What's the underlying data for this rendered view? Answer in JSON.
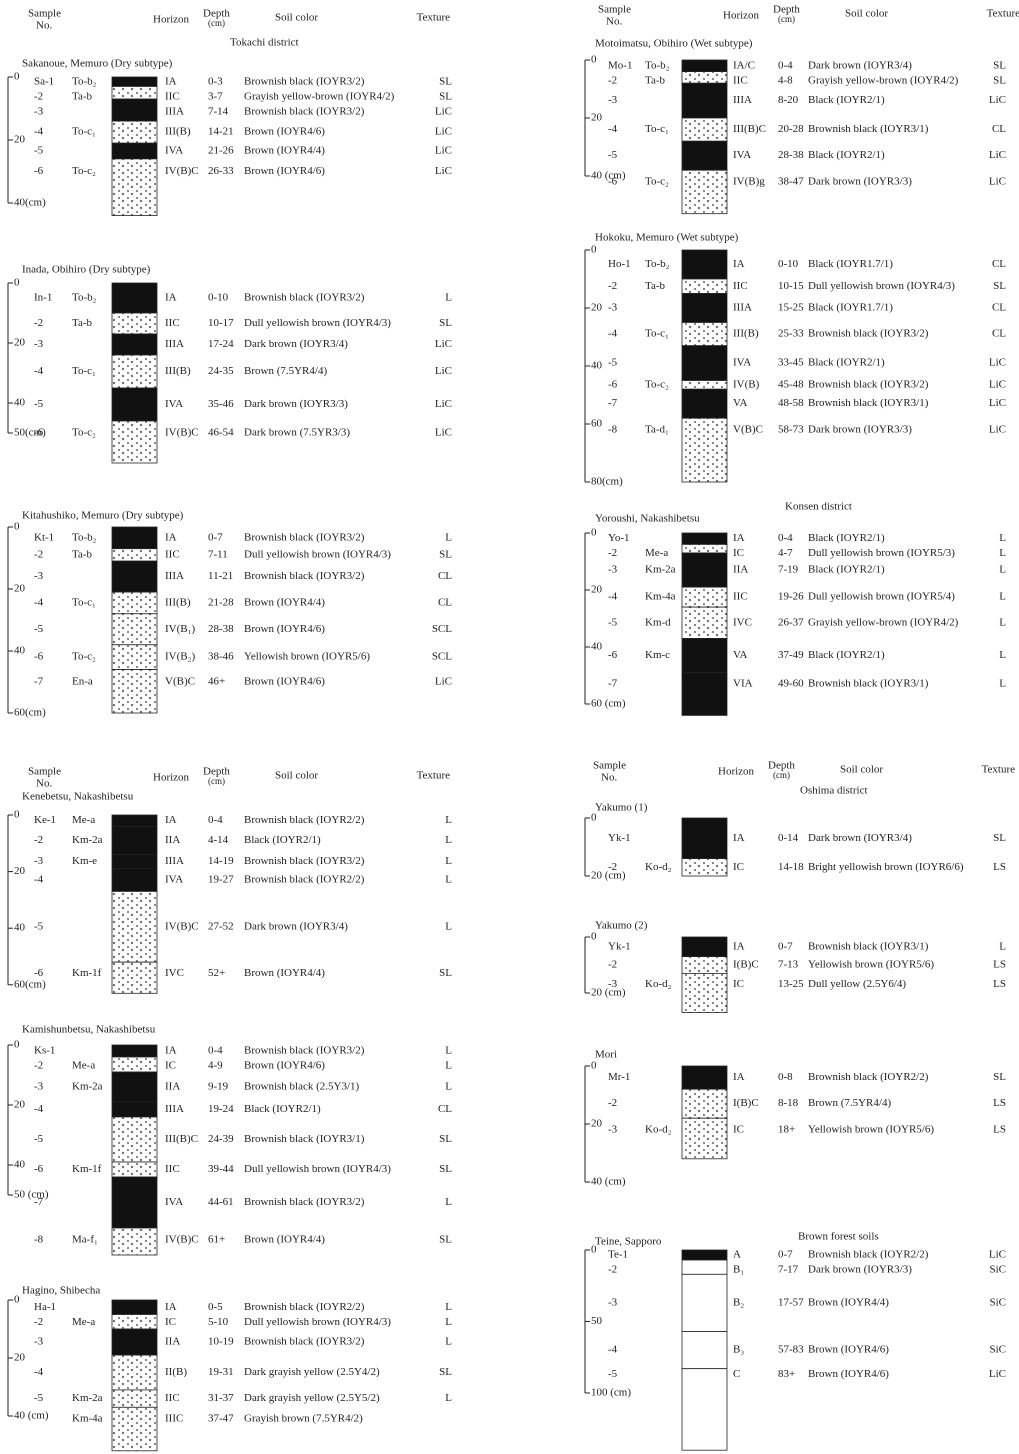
{
  "headers": [
    {
      "sample_1": "Sample",
      "sample_2": "No.",
      "horizon": "Horizon",
      "depth_1": "Depth",
      "depth_2": "(cm)",
      "color": "Soil color",
      "texture": "Texture"
    },
    {
      "sample_1": "Sample",
      "sample_2": "No.",
      "horizon": "Horizon",
      "depth_1": "Depth",
      "depth_2": "(cm)",
      "color": "Soil color",
      "texture": "Texture"
    },
    {
      "sample_1": "Sample",
      "sample_2": "No.",
      "horizon": "Horizon",
      "depth_1": "Depth",
      "depth_2": "(cm)",
      "color": "Soil color",
      "texture": "Texture"
    },
    {
      "sample_1": "Sample",
      "sample_2": "No.",
      "horizon": "Horizon",
      "depth_1": "Depth",
      "depth_2": "(cm)",
      "color": "Soil color",
      "texture": "Texture"
    }
  ],
  "districts": [
    "Tokachi district",
    "Konsen district",
    "Oshima district",
    "Brown forest soils"
  ],
  "profiles": [
    {
      "title": "Sakanoue, Memuro (Dry subtype)",
      "ticks": [
        "0",
        "20",
        "40(cm)"
      ],
      "rows": [
        {
          "no": "Sa-1",
          "tephra": "To-b₂",
          "horizon": "IA",
          "depth": "0-3",
          "color": "Brownish black (IOYR3/2)",
          "texture": "SL"
        },
        {
          "no": "-2",
          "tephra": "Ta-b",
          "horizon": "IIC",
          "depth": "3-7",
          "color": "Grayish yellow-brown (IOYR4/2)",
          "texture": "SL"
        },
        {
          "no": "-3",
          "horizon": "IIIA",
          "depth": "7-14",
          "color": "Brownish black (IOYR3/2)",
          "texture": "LiC"
        },
        {
          "no": "-4",
          "tephra": "To-c₁",
          "horizon": "III(B)",
          "depth": "14-21",
          "color": "Brown (IOYR4/6)",
          "texture": "LiC"
        },
        {
          "no": "-5",
          "horizon": "IVA",
          "depth": "21-26",
          "color": "Brown (IOYR4/4)",
          "texture": "LiC"
        },
        {
          "no": "-6",
          "tephra": "To-c₂",
          "horizon": "IV(B)C",
          "depth": "26-33",
          "color": "Brown (IOYR4/6)",
          "texture": "LiC"
        }
      ]
    },
    {
      "title": "Inada, Obihiro (Dry subtype)",
      "ticks": [
        "0",
        "20",
        "40",
        "50(cm)"
      ],
      "rows": [
        {
          "no": "In-1",
          "tephra": "To-b₂",
          "horizon": "IA",
          "depth": "0-10",
          "color": "Brownish black (IOYR3/2)",
          "texture": "L"
        },
        {
          "no": "-2",
          "tephra": "Ta-b",
          "horizon": "IIC",
          "depth": "10-17",
          "color": "Dull yellowish brown (IOYR4/3)",
          "texture": "SL"
        },
        {
          "no": "-3",
          "horizon": "IIIA",
          "depth": "17-24",
          "color": "Dark brown (IOYR3/4)",
          "texture": "LiC"
        },
        {
          "no": "-4",
          "tephra": "To-c₁",
          "horizon": "III(B)",
          "depth": "24-35",
          "color": "Brown (7.5YR4/4)",
          "texture": "LiC"
        },
        {
          "no": "-5",
          "horizon": "IVA",
          "depth": "35-46",
          "color": "Dark brown (IOYR3/3)",
          "texture": "LiC"
        },
        {
          "no": "-6",
          "tephra": "To-c₂",
          "horizon": "IV(B)C",
          "depth": "46-54",
          "color": "Dark brown (7.5YR3/3)",
          "texture": "LiC"
        }
      ]
    },
    {
      "title": "Kitahushiko, Memuro (Dry subtype)",
      "ticks": [
        "0",
        "20",
        "40",
        "60(cm)"
      ],
      "rows": [
        {
          "no": "Kt-1",
          "tephra": "To-b₂",
          "horizon": "IA",
          "depth": "0-7",
          "color": "Brownish black (IOYR3/2)",
          "texture": "L"
        },
        {
          "no": "-2",
          "tephra": "Ta-b",
          "horizon": "IIC",
          "depth": "7-11",
          "color": "Dull yellowish brown (IOYR4/3)",
          "texture": "SL"
        },
        {
          "no": "-3",
          "horizon": "IIIA",
          "depth": "11-21",
          "color": "Brownish black (IOYR3/2)",
          "texture": "CL"
        },
        {
          "no": "-4",
          "tephra": "To-c₁",
          "horizon": "III(B)",
          "depth": "21-28",
          "color": "Brown (IOYR4/4)",
          "texture": "CL"
        },
        {
          "no": "-5",
          "horizon": "IV(B₁)",
          "depth": "28-38",
          "color": "Brown (IOYR4/6)",
          "texture": "SCL"
        },
        {
          "no": "-6",
          "tephra": "To-c₂",
          "horizon": "IV(B₂)",
          "depth": "38-46",
          "color": "Yellowish brown (IOYR5/6)",
          "texture": "SCL"
        },
        {
          "no": "-7",
          "tephra": "En-a",
          "horizon": "V(B)C",
          "depth": "46+",
          "color": "Brown (IOYR4/6)",
          "texture": "LiC"
        }
      ]
    },
    {
      "title": "Kenebetsu, Nakashibetsu",
      "ticks": [
        "0",
        "20",
        "40",
        "60(cm)"
      ],
      "rows": [
        {
          "no": "Ke-1",
          "tephra": "Me-a",
          "horizon": "IA",
          "depth": "0-4",
          "color": "Brownish black (IOYR2/2)",
          "texture": "L"
        },
        {
          "no": "-2",
          "tephra": "Km-2a",
          "horizon": "IIA",
          "depth": "4-14",
          "color": "Black (IOYR2/1)",
          "texture": "L"
        },
        {
          "no": "-3",
          "tephra": "Km-e",
          "horizon": "IIIA",
          "depth": "14-19",
          "color": "Brownish black (IOYR3/2)",
          "texture": "L"
        },
        {
          "no": "-4",
          "horizon": "IVA",
          "depth": "19-27",
          "color": "Brownish black (IOYR2/2)",
          "texture": "L"
        },
        {
          "no": "-5",
          "horizon": "IV(B)C",
          "depth": "27-52",
          "color": "Dark brown (IOYR3/4)",
          "texture": "L"
        },
        {
          "no": "-6",
          "tephra": "Km-1f",
          "horizon": "IVC",
          "depth": "52+",
          "color": "Brown (IOYR4/4)",
          "texture": "SL"
        }
      ]
    },
    {
      "title": "Kamishunbetsu, Nakashibetsu",
      "ticks": [
        "0",
        "20",
        "40",
        "50 (cm)"
      ],
      "rows": [
        {
          "no": "Ks-1",
          "horizon": "IA",
          "depth": "0-4",
          "color": "Brownish black (IOYR3/2)",
          "texture": "L"
        },
        {
          "no": "-2",
          "tephra": "Me-a",
          "horizon": "IC",
          "depth": "4-9",
          "color": "Brown (IOYR4/6)",
          "texture": "L"
        },
        {
          "no": "-3",
          "tephra": "Km-2a",
          "horizon": "IIA",
          "depth": "9-19",
          "color": "Brownish black (2.5Y3/1)",
          "texture": "L"
        },
        {
          "no": "-4",
          "horizon": "IIIA",
          "depth": "19-24",
          "color": "Black (IOYR2/1)",
          "texture": "CL"
        },
        {
          "no": "-5",
          "horizon": "III(B)C",
          "depth": "24-39",
          "color": "Brownish black (IOYR3/1)",
          "texture": "SL"
        },
        {
          "no": "-6",
          "tephra": "Km-1f",
          "horizon": "IIC",
          "depth": "39-44",
          "color": "Dull yellowish brown (IOYR4/3)",
          "texture": "SL"
        },
        {
          "no": "-7",
          "horizon": "IVA",
          "depth": "44-61",
          "color": "Brownish black (IOYR3/2)",
          "texture": "L"
        },
        {
          "no": "-8",
          "tephra": "Ma-f₁",
          "horizon": "IV(B)C",
          "depth": "61+",
          "color": "Brown (IOYR4/4)",
          "texture": "SL"
        }
      ]
    },
    {
      "title": "Hagino, Shibecha",
      "ticks": [
        "0",
        "20",
        "40 (cm)"
      ],
      "rows": [
        {
          "no": "Ha-1",
          "horizon": "IA",
          "depth": "0-5",
          "color": "Brownish black (IOYR2/2)",
          "texture": "L"
        },
        {
          "no": "-2",
          "tephra": "Me-a",
          "horizon": "IC",
          "depth": "5-10",
          "color": "Dull yellowish brown (IOYR4/3)",
          "texture": "L"
        },
        {
          "no": "-3",
          "horizon": "IIA",
          "depth": "10-19",
          "color": "Brownish black (IOYR3/2)",
          "texture": "L"
        },
        {
          "no": "-4",
          "horizon": "II(B)",
          "depth": "19-31",
          "color": "Dark grayish yellow (2.5Y4/2)",
          "texture": "SL"
        },
        {
          "no": "-5",
          "tephra": "Km-2a",
          "horizon": "IIC",
          "depth": "31-37",
          "color": "Dark grayish yellow (2.5Y5/2)",
          "texture": "L"
        },
        {
          "tephra": "Km-4a",
          "horizon": "IIIC",
          "depth": "37-47",
          "color": "Grayish brown (7.5YR4/2)"
        }
      ]
    },
    {
      "title": "Motoimatsu, Obihiro (Wet subtype)",
      "ticks": [
        "0",
        "20",
        "40 (cm)"
      ],
      "rows": [
        {
          "no": "Mo-1",
          "tephra": "To-b₂",
          "horizon": "IA/C",
          "depth": "0-4",
          "color": "Dark brown (IOYR3/4)",
          "texture": "SL"
        },
        {
          "no": "-2",
          "tephra": "Ta-b",
          "horizon": "IIC",
          "depth": "4-8",
          "color": "Grayish yellow-brown (IOYR4/2)",
          "texture": "SL"
        },
        {
          "no": "-3",
          "horizon": "IIIA",
          "depth": "8-20",
          "color": "Black (IOYR2/1)",
          "texture": "LiC"
        },
        {
          "no": "-4",
          "tephra": "To-c₁",
          "horizon": "III(B)C",
          "depth": "20-28",
          "color": "Brownish black (IOYR3/1)",
          "texture": "CL"
        },
        {
          "no": "-5",
          "horizon": "IVA",
          "depth": "28-38",
          "color": "Black (IOYR2/1)",
          "texture": "LiC"
        },
        {
          "no": "-6",
          "tephra": "To-c₂",
          "horizon": "IV(B)g",
          "depth": "38-47",
          "color": "Dark brown (IOYR3/3)",
          "texture": "LiC"
        }
      ]
    },
    {
      "title": "Hokoku, Memuro (Wet subtype)",
      "ticks": [
        "0",
        "20",
        "40",
        "60",
        "80(cm)"
      ],
      "rows": [
        {
          "no": "Ho-1",
          "tephra": "To-b₂",
          "horizon": "IA",
          "depth": "0-10",
          "color": "Black (IOYR1.7/1)",
          "texture": "CL"
        },
        {
          "no": "-2",
          "tephra": "Ta-b",
          "horizon": "IIC",
          "depth": "10-15",
          "color": "Dull yellowish brown (IOYR4/3)",
          "texture": "SL"
        },
        {
          "no": "-3",
          "horizon": "IIIA",
          "depth": "15-25",
          "color": "Black (IOYR1.7/1)",
          "texture": "CL"
        },
        {
          "no": "-4",
          "tephra": "To-c₁",
          "horizon": "III(B)",
          "depth": "25-33",
          "color": "Brownish black (IOYR3/2)",
          "texture": "CL"
        },
        {
          "no": "-5",
          "horizon": "IVA",
          "depth": "33-45",
          "color": "Black (IOYR2/1)",
          "texture": "LiC"
        },
        {
          "no": "-6",
          "tephra": "To-c₂",
          "horizon": "IV(B)",
          "depth": "45-48",
          "color": "Brownish black (IOYR3/2)",
          "texture": "LiC"
        },
        {
          "no": "-7",
          "horizon": "VA",
          "depth": "48-58",
          "color": "Brownish black (IOYR3/1)",
          "texture": "LiC"
        },
        {
          "no": "-8",
          "tephra": "Ta-d₁",
          "horizon": "V(B)C",
          "depth": "58-73",
          "color": "Dark brown (IOYR3/3)",
          "texture": "LiC"
        }
      ]
    },
    {
      "title": "Yoroushi, Nakashibetsu",
      "ticks": [
        "0",
        "20",
        "40",
        "60 (cm)"
      ],
      "rows": [
        {
          "no": "Yo-1",
          "horizon": "IA",
          "depth": "0-4",
          "color": "Black (IOYR2/1)",
          "texture": "L"
        },
        {
          "no": "-2",
          "tephra": "Me-a",
          "horizon": "IC",
          "depth": "4-7",
          "color": "Dull yellowish brown (IOYR5/3)",
          "texture": "L"
        },
        {
          "no": "-3",
          "tephra": "Km-2a",
          "horizon": "IIA",
          "depth": "7-19",
          "color": "Black (IOYR2/1)",
          "texture": "L"
        },
        {
          "no": "-4",
          "tephra": "Km-4a",
          "horizon": "IIC",
          "depth": "19-26",
          "color": "Dull yellowish brown (IOYR5/4)",
          "texture": "L"
        },
        {
          "no": "-5",
          "tephra": "Km-d",
          "horizon": "IVC",
          "depth": "26-37",
          "color": "Grayish yellow-brown (IOYR4/2)",
          "texture": "L"
        },
        {
          "no": "-6",
          "tephra": "Km-c",
          "horizon": "VA",
          "depth": "37-49",
          "color": "Black (IOYR2/1)",
          "texture": "L"
        },
        {
          "no": "-7",
          "horizon": "VIA",
          "depth": "49-60",
          "color": "Brownish black (IOYR3/1)",
          "texture": "L"
        }
      ]
    },
    {
      "title": "Yakumo (1)",
      "ticks": [
        "0",
        "20 (cm)"
      ],
      "rows": [
        {
          "no": "Yk-1",
          "horizon": "IA",
          "depth": "0-14",
          "color": "Dark brown (IOYR3/4)",
          "texture": "SL"
        },
        {
          "no": "-2",
          "tephra": "Ko-d₂",
          "horizon": "IC",
          "depth": "14-18",
          "color": "Bright yellowish brown (IOYR6/6)",
          "texture": "LS"
        }
      ]
    },
    {
      "title": "Yakumo (2)",
      "ticks": [
        "0",
        "20 (cm)"
      ],
      "rows": [
        {
          "no": "Yk-1",
          "horizon": "IA",
          "depth": "0-7",
          "color": "Brownish black (IOYR3/1)",
          "texture": "L"
        },
        {
          "no": "-2",
          "horizon": "I(B)C",
          "depth": "7-13",
          "color": "Yellowish brown (IOYR5/6)",
          "texture": "LS"
        },
        {
          "no": "-3",
          "tephra": "Ko-d₂",
          "horizon": "IC",
          "depth": "13-25",
          "color": "Dull yellow (2.5Y6/4)",
          "texture": "LS"
        }
      ]
    },
    {
      "title": "Mori",
      "ticks": [
        "0",
        "20",
        "40 (cm)"
      ],
      "rows": [
        {
          "no": "Mr-1",
          "horizon": "IA",
          "depth": "0-8",
          "color": "Brownish black (IOYR2/2)",
          "texture": "SL"
        },
        {
          "no": "-2",
          "horizon": "I(B)C",
          "depth": "8-18",
          "color": "Brown (7.5YR4/4)",
          "texture": "LS"
        },
        {
          "no": "-3",
          "tephra": "Ko-d₂",
          "horizon": "IC",
          "depth": "18+",
          "color": "Yellowish brown (IOYR5/6)",
          "texture": "LS"
        }
      ]
    },
    {
      "title": "Teine, Sapporo",
      "ticks": [
        "0",
        "50",
        "100 (cm)"
      ],
      "rows": [
        {
          "no": "Te-1",
          "horizon": "A",
          "depth": "0-7",
          "color": "Brownish black (IOYR2/2)",
          "texture": "LiC"
        },
        {
          "no": "-2",
          "horizon": "B₁",
          "depth": "7-17",
          "color": "Dark brown (IOYR3/3)",
          "texture": "SiC"
        },
        {
          "no": "-3",
          "horizon": "B₂",
          "depth": "17-57",
          "color": "Brown (IOYR4/4)",
          "texture": "SiC"
        },
        {
          "no": "-4",
          "horizon": "B₃",
          "depth": "57-83",
          "color": "Brown (IOYR4/6)",
          "texture": "SiC"
        },
        {
          "no": "-5",
          "horizon": "C",
          "depth": "83+",
          "color": "Brown (IOYR4/6)",
          "texture": "LiC"
        }
      ]
    }
  ]
}
